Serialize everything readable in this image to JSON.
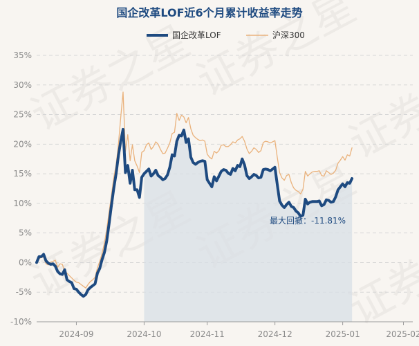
{
  "chart_data": {
    "type": "line",
    "title": "国企改革LOF近6个月累计收益率走势",
    "watermark": "证券之星",
    "legend": {
      "position": "top",
      "entries": [
        "国企改革LOF",
        "沪深300"
      ]
    },
    "yticks": [
      "35%",
      "30%",
      "25%",
      "20%",
      "15%",
      "10%",
      "5%",
      "0%",
      "-5%",
      "-10%"
    ],
    "ylim": [
      -10,
      35
    ],
    "xlim": [
      0,
      161
    ],
    "grid": true,
    "xticks": [
      {
        "label": "2024-09",
        "x": 17
      },
      {
        "label": "2024-10",
        "x": 46
      },
      {
        "label": "2024-11",
        "x": 73
      },
      {
        "label": "2024-12",
        "x": 102
      },
      {
        "label": "2025-01",
        "x": 131
      },
      {
        "label": "2025-02",
        "x": 157
      }
    ],
    "shaded_region": {
      "x_start": 46,
      "x_end": 135,
      "label": "最大回撤：-11.81%"
    },
    "series": [
      {
        "name": "国企改革LOF",
        "color": "#1e4a80",
        "points": [
          [
            0,
            0
          ],
          [
            1,
            1
          ],
          [
            2,
            1
          ],
          [
            3,
            1.4
          ],
          [
            4,
            0.3
          ],
          [
            5,
            -0.1
          ],
          [
            6,
            -0.3
          ],
          [
            7,
            -0.2
          ],
          [
            8,
            -0.6
          ],
          [
            9,
            -1.5
          ],
          [
            10,
            -1.9
          ],
          [
            11,
            -2.0
          ],
          [
            12,
            -1.2
          ],
          [
            13,
            -2.9
          ],
          [
            14,
            -3.2
          ],
          [
            15,
            -3.4
          ],
          [
            16,
            -4.4
          ],
          [
            17,
            -4.5
          ],
          [
            18,
            -5.0
          ],
          [
            19,
            -5.4
          ],
          [
            20,
            -5.7
          ],
          [
            21,
            -5.4
          ],
          [
            22,
            -4.6
          ],
          [
            23,
            -4.2
          ],
          [
            24,
            -3.9
          ],
          [
            25,
            -3.6
          ],
          [
            26,
            -1.8
          ],
          [
            27,
            -1.0
          ],
          [
            28,
            0.5
          ],
          [
            29,
            1.7
          ],
          [
            30,
            3.7
          ],
          [
            31,
            6.5
          ],
          [
            32,
            9.6
          ],
          [
            33,
            12.5
          ],
          [
            34,
            15.0
          ],
          [
            35,
            18.1
          ],
          [
            36,
            20.5
          ],
          [
            37,
            22.5
          ],
          [
            38,
            15.2
          ],
          [
            39,
            16.4
          ],
          [
            40,
            13.4
          ],
          [
            41,
            15.6
          ],
          [
            42,
            12.3
          ],
          [
            43,
            12.3
          ],
          [
            44,
            11.0
          ],
          [
            45,
            14.4
          ],
          [
            46,
            15.0
          ],
          [
            47,
            15.4
          ],
          [
            48,
            15.8
          ],
          [
            49,
            14.6
          ],
          [
            50,
            15.0
          ],
          [
            51,
            15.6
          ],
          [
            52,
            14.7
          ],
          [
            53,
            14.4
          ],
          [
            54,
            14.0
          ],
          [
            55,
            14.2
          ],
          [
            56,
            14.8
          ],
          [
            57,
            16.1
          ],
          [
            58,
            18.2
          ],
          [
            59,
            18.0
          ],
          [
            60,
            20.5
          ],
          [
            61,
            21.5
          ],
          [
            62,
            21.4
          ],
          [
            63,
            22.4
          ],
          [
            64,
            20.3
          ],
          [
            65,
            20.9
          ],
          [
            66,
            17.8
          ],
          [
            67,
            16.9
          ],
          [
            68,
            16.6
          ],
          [
            69,
            16.9
          ],
          [
            70,
            17.1
          ],
          [
            71,
            17.2
          ],
          [
            72,
            17.1
          ],
          [
            73,
            14.0
          ],
          [
            74,
            13.4
          ],
          [
            75,
            12.8
          ],
          [
            76,
            14.5
          ],
          [
            77,
            13.8
          ],
          [
            78,
            14.6
          ],
          [
            79,
            15.4
          ],
          [
            80,
            15.7
          ],
          [
            81,
            15.6
          ],
          [
            82,
            15.1
          ],
          [
            83,
            14.9
          ],
          [
            84,
            15.9
          ],
          [
            85,
            15.5
          ],
          [
            86,
            16.4
          ],
          [
            87,
            16.2
          ],
          [
            88,
            17.5
          ],
          [
            89,
            16.5
          ],
          [
            90,
            14.7
          ],
          [
            91,
            14.2
          ],
          [
            92,
            14.5
          ],
          [
            93,
            14.9
          ],
          [
            94,
            14.7
          ],
          [
            95,
            14.3
          ],
          [
            96,
            14.4
          ],
          [
            97,
            15.7
          ],
          [
            98,
            15.8
          ],
          [
            99,
            15.7
          ],
          [
            100,
            15.5
          ],
          [
            101,
            15.8
          ],
          [
            102,
            16.1
          ],
          [
            103,
            13.2
          ],
          [
            104,
            10.4
          ],
          [
            105,
            9.7
          ],
          [
            106,
            9.3
          ],
          [
            107,
            9.8
          ],
          [
            108,
            10.2
          ],
          [
            109,
            9.5
          ],
          [
            110,
            9.3
          ],
          [
            111,
            8.7
          ],
          [
            112,
            8.4
          ],
          [
            113,
            7.8
          ],
          [
            114,
            8.0
          ],
          [
            115,
            10.7
          ],
          [
            116,
            9.9
          ],
          [
            117,
            10.2
          ],
          [
            118,
            10.3
          ],
          [
            119,
            10.3
          ],
          [
            120,
            10.3
          ],
          [
            121,
            10.4
          ],
          [
            122,
            9.6
          ],
          [
            123,
            9.8
          ],
          [
            124,
            10.6
          ],
          [
            125,
            10.5
          ],
          [
            126,
            10.2
          ],
          [
            127,
            10.3
          ],
          [
            128,
            11.1
          ],
          [
            129,
            12.3
          ],
          [
            130,
            12.8
          ],
          [
            131,
            13.3
          ],
          [
            132,
            12.8
          ],
          [
            133,
            13.5
          ],
          [
            134,
            13.4
          ],
          [
            135,
            14.2
          ]
        ]
      },
      {
        "name": "沪深300",
        "color": "#eab27c",
        "points": [
          [
            0,
            0
          ],
          [
            1,
            0.6
          ],
          [
            2,
            0.9
          ],
          [
            3,
            0.9
          ],
          [
            4,
            -0.2
          ],
          [
            5,
            -0.4
          ],
          [
            6,
            0.1
          ],
          [
            7,
            0.2
          ],
          [
            8,
            0.4
          ],
          [
            9,
            -0.8
          ],
          [
            10,
            -0.2
          ],
          [
            11,
            -0.3
          ],
          [
            12,
            -1.5
          ],
          [
            13,
            -1.8
          ],
          [
            14,
            -2.2
          ],
          [
            15,
            -2.6
          ],
          [
            16,
            -3.0
          ],
          [
            17,
            -3.3
          ],
          [
            18,
            -3.4
          ],
          [
            19,
            -3.7
          ],
          [
            20,
            -4.0
          ],
          [
            21,
            -4.3
          ],
          [
            22,
            -3.7
          ],
          [
            23,
            -3.2
          ],
          [
            24,
            -2.9
          ],
          [
            25,
            -2.5
          ],
          [
            26,
            -0.9
          ],
          [
            27,
            0.2
          ],
          [
            28,
            1.5
          ],
          [
            29,
            3.3
          ],
          [
            30,
            5.6
          ],
          [
            31,
            8.5
          ],
          [
            32,
            11.3
          ],
          [
            33,
            14.3
          ],
          [
            34,
            16.5
          ],
          [
            35,
            20.0
          ],
          [
            36,
            24.5
          ],
          [
            37,
            28.8
          ],
          [
            38,
            18.8
          ],
          [
            39,
            21.6
          ],
          [
            40,
            17.2
          ],
          [
            41,
            19.9
          ],
          [
            42,
            17.2
          ],
          [
            43,
            16.3
          ],
          [
            44,
            15.2
          ],
          [
            45,
            18.6
          ],
          [
            46,
            18.9
          ],
          [
            47,
            19.9
          ],
          [
            48,
            20.2
          ],
          [
            49,
            19.1
          ],
          [
            50,
            19.6
          ],
          [
            51,
            20.4
          ],
          [
            52,
            20.0
          ],
          [
            53,
            19.1
          ],
          [
            54,
            18.4
          ],
          [
            55,
            18.5
          ],
          [
            56,
            19.3
          ],
          [
            57,
            20.2
          ],
          [
            58,
            21.8
          ],
          [
            59,
            22.0
          ],
          [
            60,
            25.2
          ],
          [
            61,
            24.0
          ],
          [
            62,
            24.9
          ],
          [
            63,
            24.6
          ],
          [
            64,
            23.6
          ],
          [
            65,
            24.5
          ],
          [
            66,
            22.6
          ],
          [
            67,
            21.5
          ],
          [
            68,
            21.1
          ],
          [
            69,
            20.8
          ],
          [
            70,
            20.6
          ],
          [
            71,
            20.7
          ],
          [
            72,
            20.5
          ],
          [
            73,
            18.3
          ],
          [
            74,
            17.8
          ],
          [
            75,
            17.5
          ],
          [
            76,
            18.8
          ],
          [
            77,
            18.5
          ],
          [
            78,
            18.9
          ],
          [
            79,
            19.8
          ],
          [
            80,
            19.9
          ],
          [
            81,
            19.6
          ],
          [
            82,
            19.6
          ],
          [
            83,
            19.9
          ],
          [
            84,
            20.4
          ],
          [
            85,
            20.2
          ],
          [
            86,
            20.7
          ],
          [
            87,
            20.9
          ],
          [
            88,
            21.3
          ],
          [
            89,
            20.5
          ],
          [
            90,
            19.2
          ],
          [
            91,
            18.4
          ],
          [
            92,
            18.8
          ],
          [
            93,
            19.4
          ],
          [
            94,
            19.1
          ],
          [
            95,
            18.6
          ],
          [
            96,
            18.9
          ],
          [
            97,
            20.3
          ],
          [
            98,
            20.5
          ],
          [
            99,
            20.4
          ],
          [
            100,
            20.2
          ],
          [
            101,
            20.4
          ],
          [
            102,
            20.6
          ],
          [
            103,
            17.8
          ],
          [
            104,
            15.2
          ],
          [
            105,
            14.3
          ],
          [
            106,
            13.9
          ],
          [
            107,
            14.7
          ],
          [
            108,
            14.9
          ],
          [
            109,
            13.5
          ],
          [
            110,
            12.6
          ],
          [
            111,
            12.2
          ],
          [
            112,
            12.0
          ],
          [
            113,
            11.6
          ],
          [
            114,
            12.4
          ],
          [
            115,
            15.4
          ],
          [
            116,
            14.6
          ],
          [
            117,
            15.0
          ],
          [
            118,
            15.3
          ],
          [
            119,
            15.4
          ],
          [
            120,
            15.4
          ],
          [
            121,
            15.5
          ],
          [
            122,
            14.7
          ],
          [
            123,
            14.6
          ],
          [
            124,
            15.5
          ],
          [
            125,
            15.2
          ],
          [
            126,
            14.9
          ],
          [
            127,
            15.1
          ],
          [
            128,
            15.6
          ],
          [
            129,
            16.8
          ],
          [
            130,
            17.3
          ],
          [
            131,
            17.9
          ],
          [
            132,
            17.3
          ],
          [
            133,
            18.2
          ],
          [
            134,
            18.0
          ],
          [
            135,
            19.4
          ]
        ]
      }
    ]
  }
}
